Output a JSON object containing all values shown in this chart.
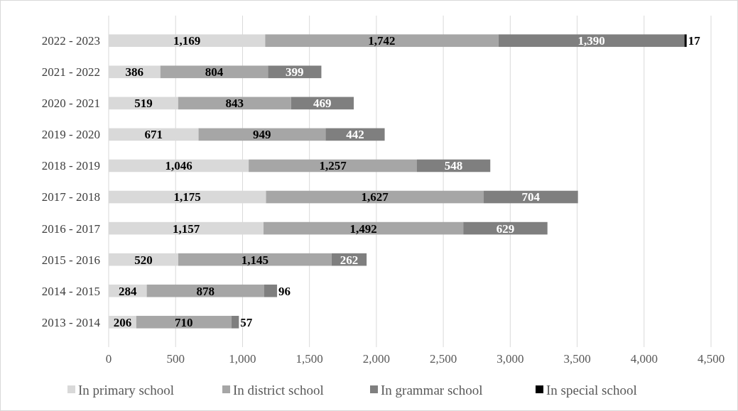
{
  "chart_data": {
    "type": "bar",
    "orientation": "horizontal",
    "stacked": true,
    "categories": [
      "2022 - 2023",
      "2021 - 2022",
      "2020 - 2021",
      "2019 - 2020",
      "2018 - 2019",
      "2017 - 2018",
      "2016 - 2017",
      "2015 - 2016",
      "2014 - 2015",
      "2013 - 2014"
    ],
    "series": [
      {
        "name": "In primary school",
        "color": "#d9d9d9",
        "values": [
          1169,
          386,
          519,
          671,
          1046,
          1175,
          1157,
          520,
          284,
          206
        ],
        "value_labels": [
          "1,169",
          "386",
          "519",
          "671",
          "1,046",
          "1,175",
          "1,157",
          "520",
          "284",
          "206"
        ]
      },
      {
        "name": "In district school",
        "color": "#a6a6a6",
        "values": [
          1742,
          804,
          843,
          949,
          1257,
          1627,
          1492,
          1145,
          878,
          710
        ],
        "value_labels": [
          "1,742",
          "804",
          "843",
          "949",
          "1,257",
          "1,627",
          "1,492",
          "1,145",
          "878",
          "710"
        ]
      },
      {
        "name": "In grammar school",
        "color": "#7f7f7f",
        "values": [
          1390,
          399,
          469,
          442,
          548,
          704,
          629,
          262,
          96,
          57
        ],
        "value_labels": [
          "1,390",
          "399",
          "469",
          "442",
          "548",
          "704",
          "629",
          "262",
          "96",
          "57"
        ]
      },
      {
        "name": "In special school",
        "color": "#000000",
        "values": [
          17,
          null,
          null,
          null,
          null,
          null,
          null,
          null,
          null,
          null
        ],
        "value_labels": [
          "17",
          null,
          null,
          null,
          null,
          null,
          null,
          null,
          null,
          null
        ]
      }
    ],
    "xlim": [
      0,
      4500
    ],
    "xticks": [
      {
        "value": 0,
        "label": "0"
      },
      {
        "value": 500,
        "label": "500"
      },
      {
        "value": 1000,
        "label": "1,000"
      },
      {
        "value": 1500,
        "label": "1,500"
      },
      {
        "value": 2000,
        "label": "2,000"
      },
      {
        "value": 2500,
        "label": "2,500"
      },
      {
        "value": 3000,
        "label": "3,000"
      },
      {
        "value": 3500,
        "label": "3,500"
      },
      {
        "value": 4000,
        "label": "4,000"
      },
      {
        "value": 4500,
        "label": "4,500"
      }
    ],
    "grid": "x",
    "legend": "bottom"
  }
}
